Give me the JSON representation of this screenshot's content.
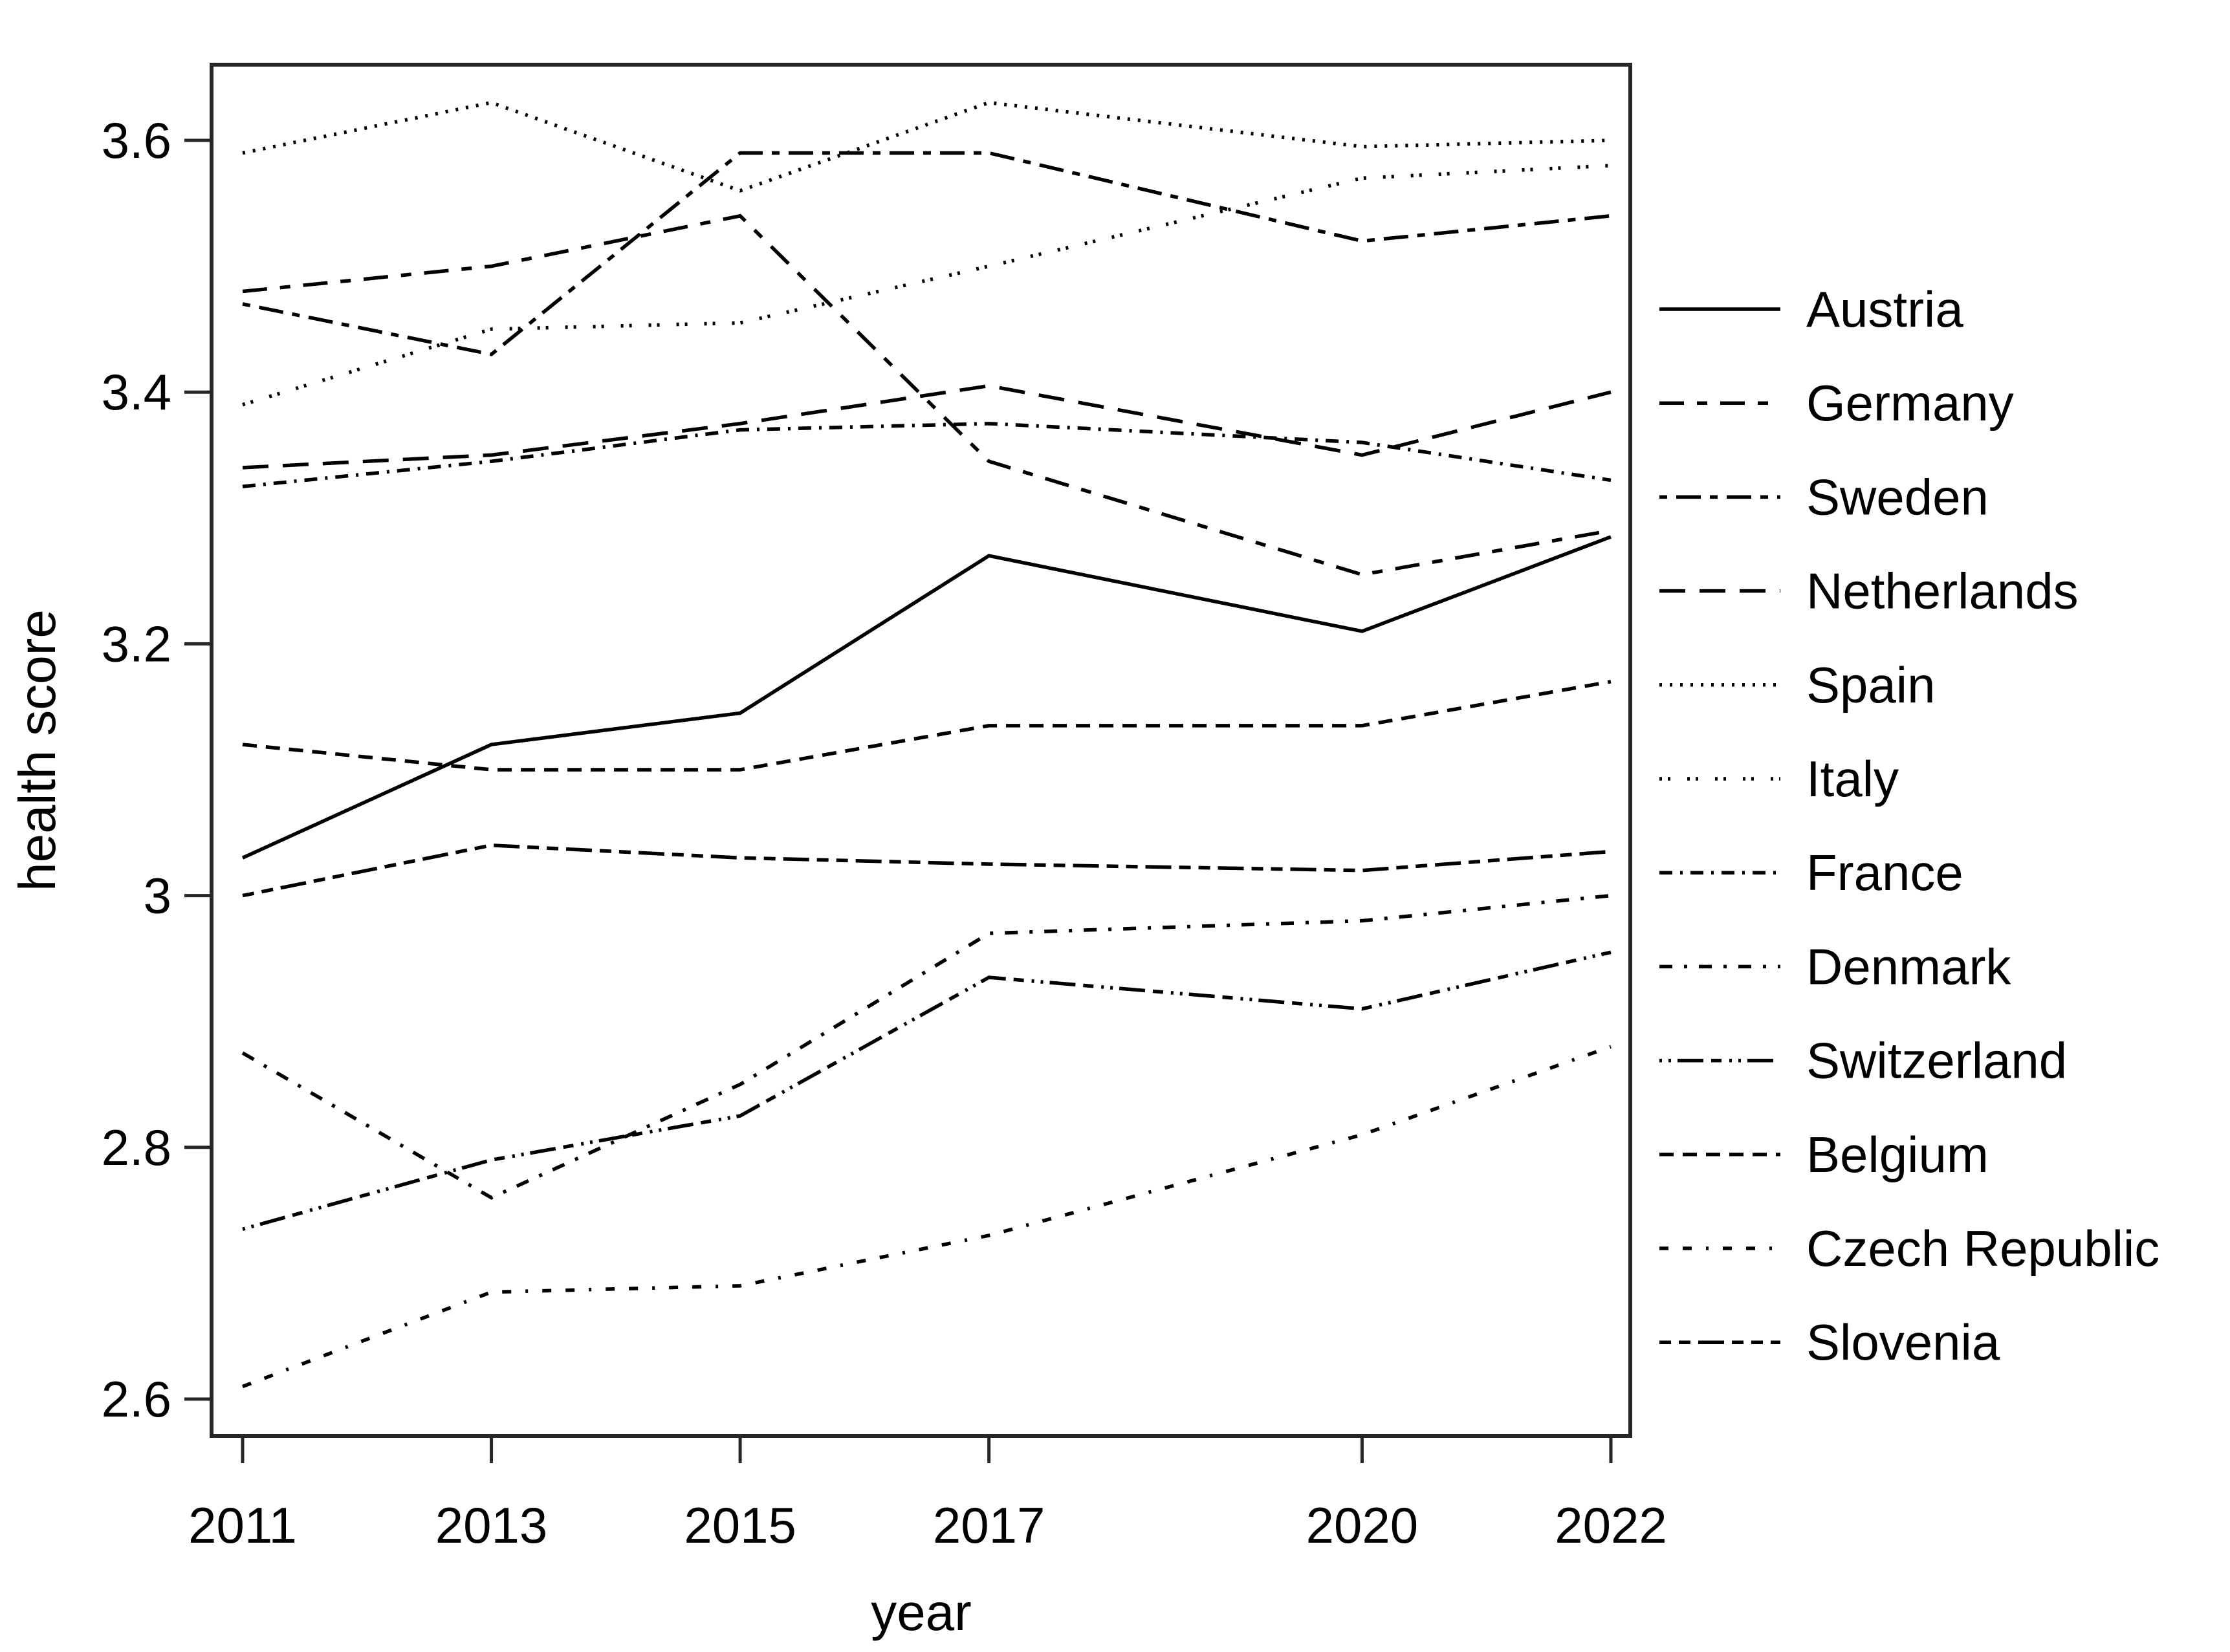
{
  "figure": {
    "background_color": "#ffffff",
    "line_color": "#000000",
    "text_color": "#000000"
  },
  "chart_data": {
    "type": "line",
    "title": "",
    "xlabel": "year",
    "ylabel": "health score",
    "x": [
      2011,
      2013,
      2015,
      2017,
      2020,
      2022
    ],
    "xtick_labels": [
      "2011",
      "2013",
      "2015",
      "2017",
      "2020",
      "2022"
    ],
    "ytick_values": [
      3.6,
      3.4,
      3.2,
      3.0,
      2.8,
      2.6
    ],
    "ytick_labels": [
      "3.6",
      "3.4",
      "3.2",
      "3",
      "2.8",
      "2.6"
    ],
    "ylim": [
      2.57,
      3.66
    ],
    "xlim": [
      2010.75,
      2022.16
    ],
    "grid": false,
    "legend_position": "right",
    "series": [
      {
        "name": "Austria",
        "dash": "solid",
        "values": [
          3.03,
          3.12,
          3.145,
          3.27,
          3.21,
          3.285
        ]
      },
      {
        "name": "Germany",
        "dash": "longdash-shortdash",
        "values": [
          3.48,
          3.5,
          3.54,
          3.345,
          3.255,
          3.29
        ]
      },
      {
        "name": "Sweden",
        "dash": "shortdash-longdash",
        "values": [
          3.47,
          3.43,
          3.59,
          3.59,
          3.52,
          3.54
        ]
      },
      {
        "name": "Netherlands",
        "dash": "longdash",
        "values": [
          3.34,
          3.35,
          3.375,
          3.405,
          3.35,
          3.4
        ]
      },
      {
        "name": "Spain",
        "dash": "dot",
        "values": [
          3.59,
          3.63,
          3.56,
          3.63,
          3.595,
          3.6
        ]
      },
      {
        "name": "Italy",
        "dash": "dot-dot",
        "values": [
          3.39,
          3.45,
          3.455,
          3.5,
          3.57,
          3.58
        ]
      },
      {
        "name": "France",
        "dash": "dash-dot",
        "values": [
          3.325,
          3.345,
          3.37,
          3.375,
          3.36,
          3.33
        ]
      },
      {
        "name": "Denmark",
        "dash": "dash-dot-dot",
        "values": [
          2.875,
          2.76,
          2.85,
          2.97,
          2.98,
          3.0
        ]
      },
      {
        "name": "Switzerland",
        "dash": "dot-dot-longdash",
        "values": [
          2.735,
          2.79,
          2.825,
          2.935,
          2.91,
          2.955
        ]
      },
      {
        "name": "Belgium",
        "dash": "mediumdash",
        "values": [
          3.12,
          3.1,
          3.1,
          3.135,
          3.135,
          3.17
        ]
      },
      {
        "name": "Czech Republic",
        "dash": "sparse-dash-dot",
        "values": [
          2.61,
          2.685,
          2.69,
          2.73,
          2.81,
          2.88
        ]
      },
      {
        "name": "Slovenia",
        "dash": "dash-dash-longdash",
        "values": [
          3.0,
          3.04,
          3.03,
          3.025,
          3.02,
          3.035
        ]
      }
    ]
  }
}
